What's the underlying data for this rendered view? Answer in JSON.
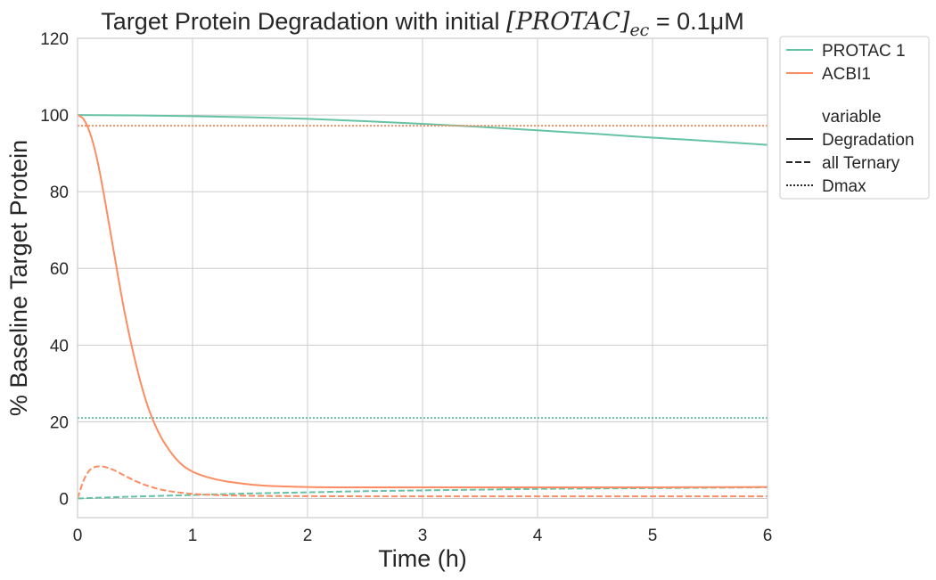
{
  "chart_data": {
    "type": "line",
    "title_prefix": "Target Protein Degradation with initial ",
    "title_math": "[PROTAC]",
    "title_sub": "ec",
    "title_suffix": " = 0.1μM",
    "xlabel": "Time (h)",
    "ylabel": "% Baseline Target Protein",
    "xlim": [
      0,
      6
    ],
    "ylim": [
      -5,
      120
    ],
    "xticks": [
      0,
      1,
      2,
      3,
      4,
      5,
      6
    ],
    "yticks": [
      0,
      20,
      40,
      60,
      80,
      100,
      120
    ],
    "grid": true,
    "legend_placement": "outside-upper-right",
    "colors": {
      "PROTAC 1": "#66c2a5",
      "ACBI1": "#fc8d62",
      "legend_line": "#262626",
      "grid": "#cccccc"
    },
    "legend": {
      "hue_entries": [
        "PROTAC 1",
        "ACBI1"
      ],
      "style_title": "variable",
      "style_entries": [
        "Degradation",
        "all Ternary",
        "Dmax"
      ]
    },
    "series": [
      {
        "name": "PROTAC 1",
        "variable": "Degradation",
        "style": "solid",
        "x": [
          0,
          0.5,
          1,
          1.5,
          2,
          2.5,
          3,
          3.5,
          4,
          4.5,
          5,
          5.5,
          6
        ],
        "y": [
          100,
          99.9,
          99.7,
          99.4,
          99.0,
          98.4,
          97.7,
          96.9,
          96.0,
          95.1,
          94.1,
          93.2,
          92.2
        ]
      },
      {
        "name": "PROTAC 1",
        "variable": "all Ternary",
        "style": "dashed",
        "x": [
          0,
          0.5,
          1,
          1.5,
          2,
          2.5,
          3,
          3.5,
          4,
          4.5,
          5,
          5.5,
          6
        ],
        "y": [
          0,
          0.5,
          0.9,
          1.3,
          1.6,
          1.9,
          2.1,
          2.3,
          2.5,
          2.6,
          2.7,
          2.8,
          2.9
        ]
      },
      {
        "name": "PROTAC 1",
        "variable": "Dmax",
        "style": "dotted",
        "x": [
          0,
          6
        ],
        "y": [
          21,
          21
        ]
      },
      {
        "name": "ACBI1",
        "variable": "Degradation",
        "style": "solid",
        "x": [
          0,
          0.05,
          0.1,
          0.15,
          0.2,
          0.3,
          0.4,
          0.5,
          0.6,
          0.7,
          0.8,
          0.9,
          1.0,
          1.2,
          1.4,
          1.6,
          2.0,
          2.5,
          3,
          4,
          5,
          6
        ],
        "y": [
          100,
          99.0,
          96.0,
          91.0,
          84.0,
          67.0,
          50.0,
          36.0,
          25.0,
          17.5,
          12.5,
          9.0,
          7.0,
          5.0,
          4.0,
          3.4,
          3.0,
          2.9,
          2.9,
          2.9,
          2.9,
          3.0
        ]
      },
      {
        "name": "ACBI1",
        "variable": "all Ternary",
        "style": "dashed",
        "x": [
          0,
          0.05,
          0.1,
          0.15,
          0.2,
          0.3,
          0.4,
          0.5,
          0.6,
          0.7,
          0.8,
          1.0,
          1.2,
          1.5,
          2,
          3,
          4,
          5,
          6
        ],
        "y": [
          0,
          4.5,
          7.2,
          8.2,
          8.4,
          7.6,
          6.1,
          4.6,
          3.4,
          2.5,
          1.9,
          1.2,
          0.9,
          0.7,
          0.6,
          0.55,
          0.55,
          0.55,
          0.55
        ]
      },
      {
        "name": "ACBI1",
        "variable": "Dmax",
        "style": "dotted",
        "x": [
          0,
          6
        ],
        "y": [
          97.2,
          97.2
        ]
      }
    ]
  }
}
